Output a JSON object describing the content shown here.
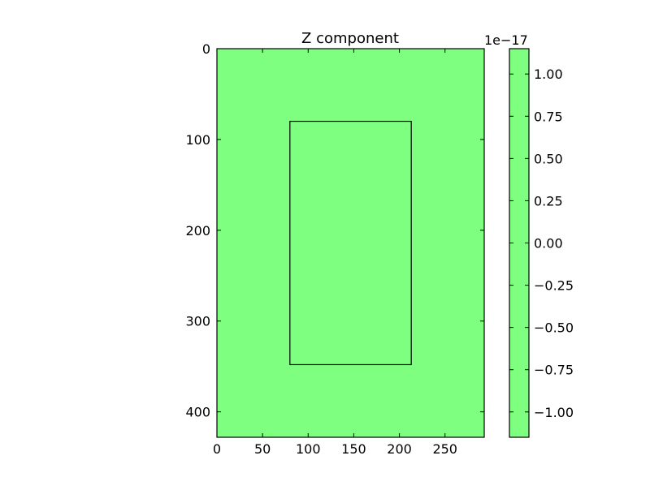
{
  "chart_data": {
    "type": "heatmap",
    "title": "Z component",
    "xlabel": "",
    "ylabel": "",
    "xlim": [
      0,
      293
    ],
    "ylim": [
      428,
      0
    ],
    "x_ticks": [
      0,
      50,
      100,
      150,
      200,
      250
    ],
    "y_ticks": [
      0,
      100,
      200,
      300,
      400
    ],
    "field_value": 0.0,
    "fill_color": "#7fff7f",
    "overlay_rectangle": {
      "x_min": 80,
      "x_max": 213,
      "y_min": 80,
      "y_max": 348
    },
    "colorbar": {
      "range": [
        -1.15,
        1.15
      ],
      "ticks": [
        1.0,
        0.75,
        0.5,
        0.25,
        0.0,
        -0.25,
        -0.5,
        -0.75,
        -1.0
      ],
      "tick_labels": [
        "1.00",
        "0.75",
        "0.50",
        "0.25",
        "0.00",
        "−0.25",
        "−0.50",
        "−0.75",
        "−1.00"
      ],
      "offset_label": "1e−17"
    },
    "grid": false
  }
}
